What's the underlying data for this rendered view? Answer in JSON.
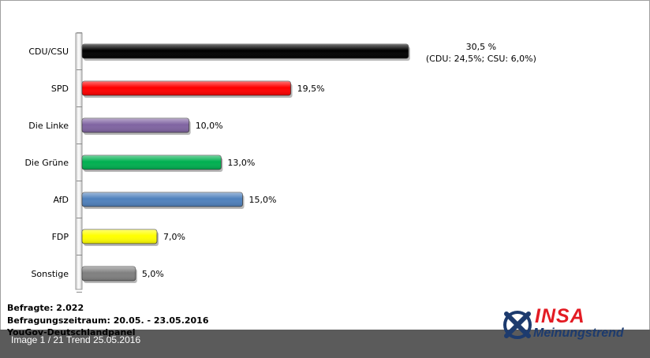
{
  "chart_data": {
    "type": "bar",
    "orientation": "horizontal",
    "categories": [
      "CDU/CSU",
      "SPD",
      "Die Linke",
      "Die Grüne",
      "AfD",
      "FDP",
      "Sonstige"
    ],
    "values": [
      30.5,
      19.5,
      10.0,
      13.0,
      15.0,
      7.0,
      5.0
    ],
    "value_labels": [
      "30,5 %",
      "19,5%",
      "10,0%",
      "13,0%",
      "15,0%",
      "7,0%",
      "5,0%"
    ],
    "value_sublabels": [
      "(CDU: 24,5%; CSU: 6,0%)",
      "",
      "",
      "",
      "",
      "",
      ""
    ],
    "colors": [
      "#000000",
      "#ff0000",
      "#8064a2",
      "#00b050",
      "#4f81bd",
      "#ffff00",
      "#808080"
    ],
    "xlim": [
      0,
      35
    ],
    "grid": false,
    "legend": "none"
  },
  "meta": {
    "respondents": "Befragte: 2.022",
    "period": "Befragungszeitraum:  20.05. - 23.05.2016",
    "panel": "YouGov-Deutschlandpanel"
  },
  "footer": {
    "caption": "Image 1 / 21   Trend 25.05.2016"
  },
  "logo": {
    "brand": "INSA",
    "subtitle": "Meinungstrend"
  }
}
